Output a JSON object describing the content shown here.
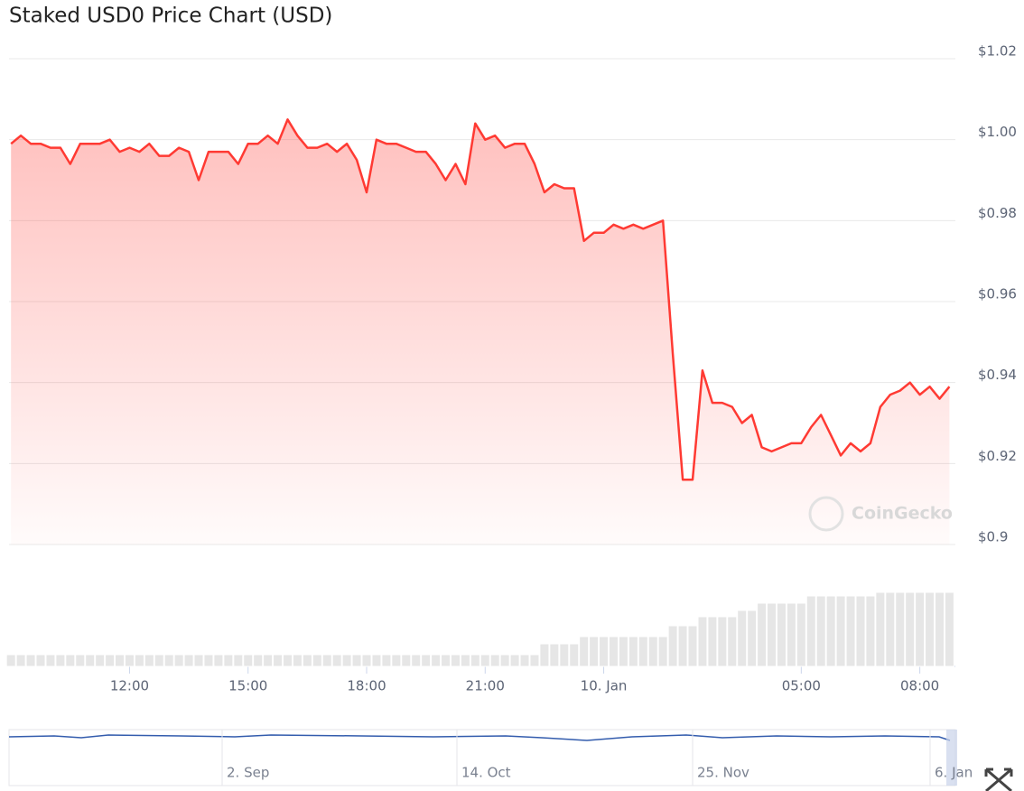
{
  "chart_data": {
    "type": "line",
    "title": "Staked USD0 Price Chart (USD)",
    "watermark": "CoinGecko",
    "color": "#ff3a33",
    "x": [
      9,
      9.25,
      9.5,
      9.75,
      10,
      10.25,
      10.5,
      10.75,
      11,
      11.25,
      11.5,
      11.75,
      12,
      12.25,
      12.5,
      12.75,
      13,
      13.25,
      13.5,
      13.75,
      14,
      14.25,
      14.5,
      14.75,
      15,
      15.25,
      15.5,
      15.75,
      16,
      16.25,
      16.5,
      16.75,
      17,
      17.25,
      17.5,
      17.75,
      18,
      18.25,
      18.5,
      18.75,
      19,
      19.25,
      19.5,
      19.75,
      20,
      20.25,
      20.5,
      20.75,
      21,
      21.25,
      21.5,
      21.75,
      22,
      22.25,
      22.5,
      22.75,
      23,
      23.25,
      23.5,
      23.75,
      24,
      24.25,
      24.5,
      24.75,
      25,
      25.25,
      25.5,
      25.75,
      26,
      26.25,
      26.5,
      26.75,
      27,
      27.25,
      27.5,
      27.75,
      28,
      28.25,
      28.5,
      28.75,
      29,
      29.25,
      29.5,
      29.75,
      30,
      30.25,
      30.5,
      30.75,
      31,
      31.25,
      31.5,
      31.75,
      32,
      32.25,
      32.5,
      32.75
    ],
    "values": [
      0.999,
      1.001,
      0.999,
      0.999,
      0.998,
      0.998,
      0.994,
      0.999,
      0.999,
      0.999,
      1.0,
      0.997,
      0.998,
      0.997,
      0.999,
      0.996,
      0.996,
      0.998,
      0.997,
      0.99,
      0.997,
      0.997,
      0.997,
      0.994,
      0.999,
      0.999,
      1.001,
      0.999,
      1.005,
      1.001,
      0.998,
      0.998,
      0.999,
      0.997,
      0.999,
      0.995,
      0.987,
      1.0,
      0.999,
      0.999,
      0.998,
      0.997,
      0.997,
      0.994,
      0.99,
      0.994,
      0.989,
      1.004,
      1.0,
      1.001,
      0.998,
      0.999,
      0.999,
      0.994,
      0.987,
      0.989,
      0.988,
      0.988,
      0.975,
      0.977,
      0.977,
      0.979,
      0.978,
      0.979,
      0.978,
      0.979,
      0.98,
      0.947,
      0.916,
      0.916,
      0.943,
      0.935,
      0.935,
      0.934,
      0.93,
      0.932,
      0.924,
      0.923,
      0.924,
      0.925,
      0.925,
      0.929,
      0.932,
      0.927,
      0.922,
      0.925,
      0.923,
      0.925,
      0.934,
      0.937,
      0.938,
      0.94,
      0.937,
      0.939,
      0.936,
      0.939
    ],
    "volume": [
      13,
      13,
      13,
      13,
      13,
      13,
      13,
      13,
      13,
      13,
      13,
      13,
      13,
      13,
      13,
      13,
      13,
      13,
      13,
      13,
      13,
      13,
      13,
      13,
      13,
      13,
      13,
      13,
      13,
      13,
      13,
      13,
      13,
      13,
      13,
      13,
      13,
      13,
      13,
      13,
      13,
      13,
      13,
      13,
      13,
      13,
      13,
      13,
      13,
      13,
      13,
      13,
      13,
      13,
      25,
      25,
      25,
      25,
      33,
      33,
      33,
      33,
      33,
      33,
      33,
      33,
      33,
      45,
      45,
      45,
      55,
      55,
      55,
      55,
      62,
      62,
      70,
      70,
      70,
      70,
      70,
      78,
      78,
      78,
      78,
      78,
      78,
      78,
      82,
      82,
      82,
      82,
      82,
      82,
      82,
      82
    ],
    "xlim": [
      8.95,
      32.9
    ],
    "xticks": [
      {
        "value": 12,
        "label": "12:00"
      },
      {
        "value": 15,
        "label": "15:00"
      },
      {
        "value": 18,
        "label": "18:00"
      },
      {
        "value": 21,
        "label": "21:00"
      },
      {
        "value": 24,
        "label": "10. Jan"
      },
      {
        "value": 29,
        "label": "05:00"
      },
      {
        "value": 32,
        "label": "08:00"
      }
    ],
    "ylim": [
      0.9,
      1.02
    ],
    "yticks": [
      {
        "value": 0.9,
        "label": "$0.9"
      },
      {
        "value": 0.92,
        "label": "$0.92"
      },
      {
        "value": 0.94,
        "label": "$0.94"
      },
      {
        "value": 0.96,
        "label": "$0.96"
      },
      {
        "value": 0.98,
        "label": "$0.98"
      },
      {
        "value": 1,
        "label": "$1.00"
      },
      {
        "value": 1.02,
        "label": "$1.02"
      }
    ],
    "grid": true,
    "navigator_labels": [
      "2. Sep",
      "14. Oct",
      "25. Nov",
      "6. Jan"
    ]
  }
}
